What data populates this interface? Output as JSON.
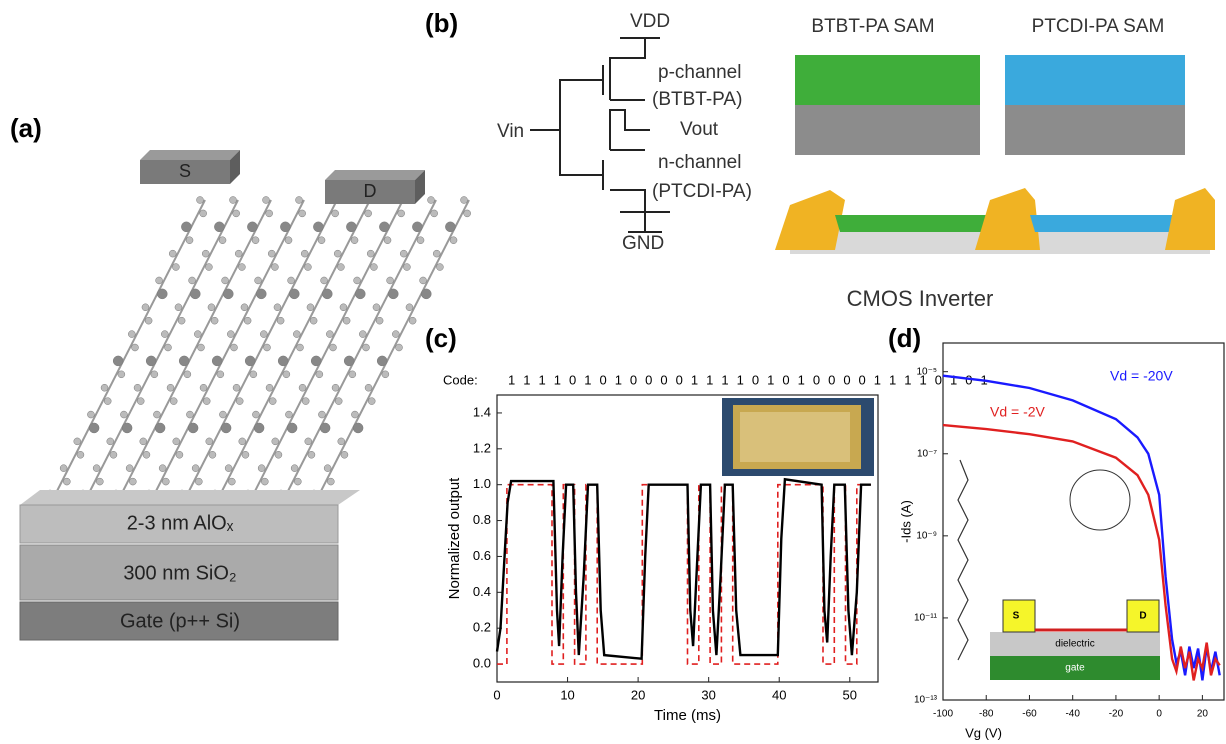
{
  "panel_a": {
    "label": "(a)",
    "source": "S",
    "drain": "D",
    "layers": [
      "2-3 nm AlOₓ",
      "300 nm SiO₂",
      "Gate (p++ Si)"
    ]
  },
  "panel_b": {
    "label": "(b)",
    "vdd": "VDD",
    "p_channel": "p-channel",
    "p_material": "(BTBT-PA)",
    "vin": "Vin",
    "vout": "Vout",
    "n_channel": "n-channel",
    "n_material": "(PTCDI-PA)",
    "gnd": "GND",
    "sam_p": "BTBT-PA SAM",
    "sam_n": "PTCDI-PA SAM",
    "caption": "CMOS Inverter"
  },
  "chart_data": [
    {
      "type": "line",
      "label": "(c)",
      "code_label": "Code:",
      "code": "1 1 1 1 0 1 0 1 0 0 0 0 1 1 1 1 0 1 0 1 0 0 0 0 1 1 1 1 0 1 0 1",
      "x_label": "Time (ms)",
      "y_label": "Normalized output",
      "xlim": [
        0,
        54
      ],
      "ylim": [
        -0.1,
        1.5
      ],
      "xticks": [
        0,
        10,
        20,
        30,
        40,
        50
      ],
      "yticks": [
        {
          "value": 0,
          "label": "0.0"
        },
        0.2,
        0.4,
        0.6,
        0.8,
        {
          "value": 1,
          "label": "1.0"
        },
        1.2,
        1.4
      ],
      "series": [
        {
          "color": "#e02020",
          "dash": true,
          "x": [
            0,
            1.4,
            1.4,
            7.8,
            7.8,
            9.4,
            9.4,
            11,
            11,
            12.6,
            12.6,
            14.2,
            14.2,
            20.6,
            20.6,
            27,
            27,
            28.6,
            28.6,
            30.2,
            30.2,
            31.8,
            31.8,
            33.4,
            33.4,
            39.8,
            39.8,
            46.2,
            46.2,
            47.8,
            47.8,
            49.4,
            49.4,
            51,
            51,
            53
          ],
          "values": [
            0,
            0,
            1,
            1,
            0,
            0,
            1,
            1,
            0,
            0,
            1,
            1,
            0,
            0,
            1,
            1,
            0,
            0,
            1,
            1,
            0,
            0,
            1,
            1,
            0,
            0,
            1,
            1,
            0,
            0,
            1,
            1,
            0,
            0,
            1,
            1
          ]
        },
        {
          "color": "#000000",
          "dash": false,
          "x": [
            0,
            0.5,
            1.5,
            2,
            8,
            8.5,
            8.8,
            9.3,
            9.8,
            10.8,
            11.2,
            11.6,
            12.3,
            12.9,
            14.2,
            14.7,
            15.2,
            20.5,
            21,
            21.5,
            27,
            27.4,
            27.8,
            28.4,
            28.9,
            30.2,
            30.6,
            31.1,
            31.7,
            32.3,
            33.4,
            33.9,
            34.5,
            39.8,
            40.3,
            40.8,
            46,
            46.4,
            46.8,
            47.3,
            47.8,
            49.3,
            49.8,
            50.3,
            51,
            51.6,
            53
          ],
          "values": [
            0.07,
            0.2,
            0.9,
            1.02,
            1.02,
            0.3,
            0.1,
            0.6,
            1.0,
            1.0,
            0.4,
            0.05,
            0.5,
            1.0,
            1.0,
            0.3,
            0.05,
            0.03,
            0.6,
            1.0,
            1.0,
            0.3,
            0.1,
            0.6,
            1.0,
            1.0,
            0.3,
            0.05,
            0.5,
            1.0,
            1.0,
            0.3,
            0.05,
            0.05,
            0.7,
            1.03,
            1.0,
            0.3,
            0.12,
            0.6,
            1.0,
            1.0,
            0.3,
            0.05,
            0.4,
            1.0,
            1.0
          ]
        }
      ]
    },
    {
      "type": "line",
      "label": "(d)",
      "yscale": "log",
      "x_label": "Vg (V)",
      "y_label": "-Ids (A)",
      "xlim": [
        -100,
        30
      ],
      "ylim": [
        1e-13,
        5e-05
      ],
      "xticks": [
        -100,
        -80,
        -60,
        -40,
        -20,
        0,
        20
      ],
      "yticks": [
        {
          "value": 1e-05,
          "label": "10⁻⁵"
        },
        {
          "value": 1e-07,
          "label": "10⁻⁷"
        },
        {
          "value": 1e-09,
          "label": "10⁻⁹"
        },
        {
          "value": 1e-11,
          "label": "10⁻¹¹"
        },
        {
          "value": 1e-13,
          "label": "10⁻¹³"
        }
      ],
      "annotations": [
        {
          "text": "Vd = -20V",
          "color": "#1a1aff"
        },
        {
          "text": "Vd = -2V",
          "color": "#e02020"
        }
      ],
      "inset": [
        "S",
        "D",
        "dielectric",
        "gate"
      ],
      "series": [
        {
          "color": "#1a1aff",
          "dash": false,
          "x": [
            -100,
            -80,
            -60,
            -40,
            -20,
            -10,
            -5,
            0,
            3,
            6,
            8,
            10,
            12,
            14,
            16,
            18,
            20,
            22,
            24,
            26,
            28
          ],
          "values": [
            8e-06,
            6e-06,
            4e-06,
            2e-06,
            7e-07,
            2.5e-07,
            1e-07,
            1e-08,
            1e-10,
            3e-12,
            8e-13,
            1.5e-12,
            4e-13,
            2e-12,
            6e-13,
            1.8e-12,
            3e-13,
            2e-12,
            5e-13,
            1.5e-12,
            4e-13
          ]
        },
        {
          "color": "#e02020",
          "dash": false,
          "x": [
            -100,
            -80,
            -60,
            -40,
            -20,
            -10,
            -5,
            0,
            3,
            6,
            8,
            10,
            12,
            14,
            16,
            18,
            20,
            22,
            24,
            26,
            28
          ],
          "values": [
            5e-07,
            4e-07,
            3e-07,
            2e-07,
            8e-08,
            3e-08,
            1e-08,
            8e-10,
            2e-11,
            1e-12,
            5e-13,
            2e-12,
            6e-13,
            1.5e-12,
            3e-13,
            1e-12,
            6e-13,
            2.5e-12,
            4e-13,
            1e-12,
            7e-13
          ]
        }
      ]
    }
  ]
}
